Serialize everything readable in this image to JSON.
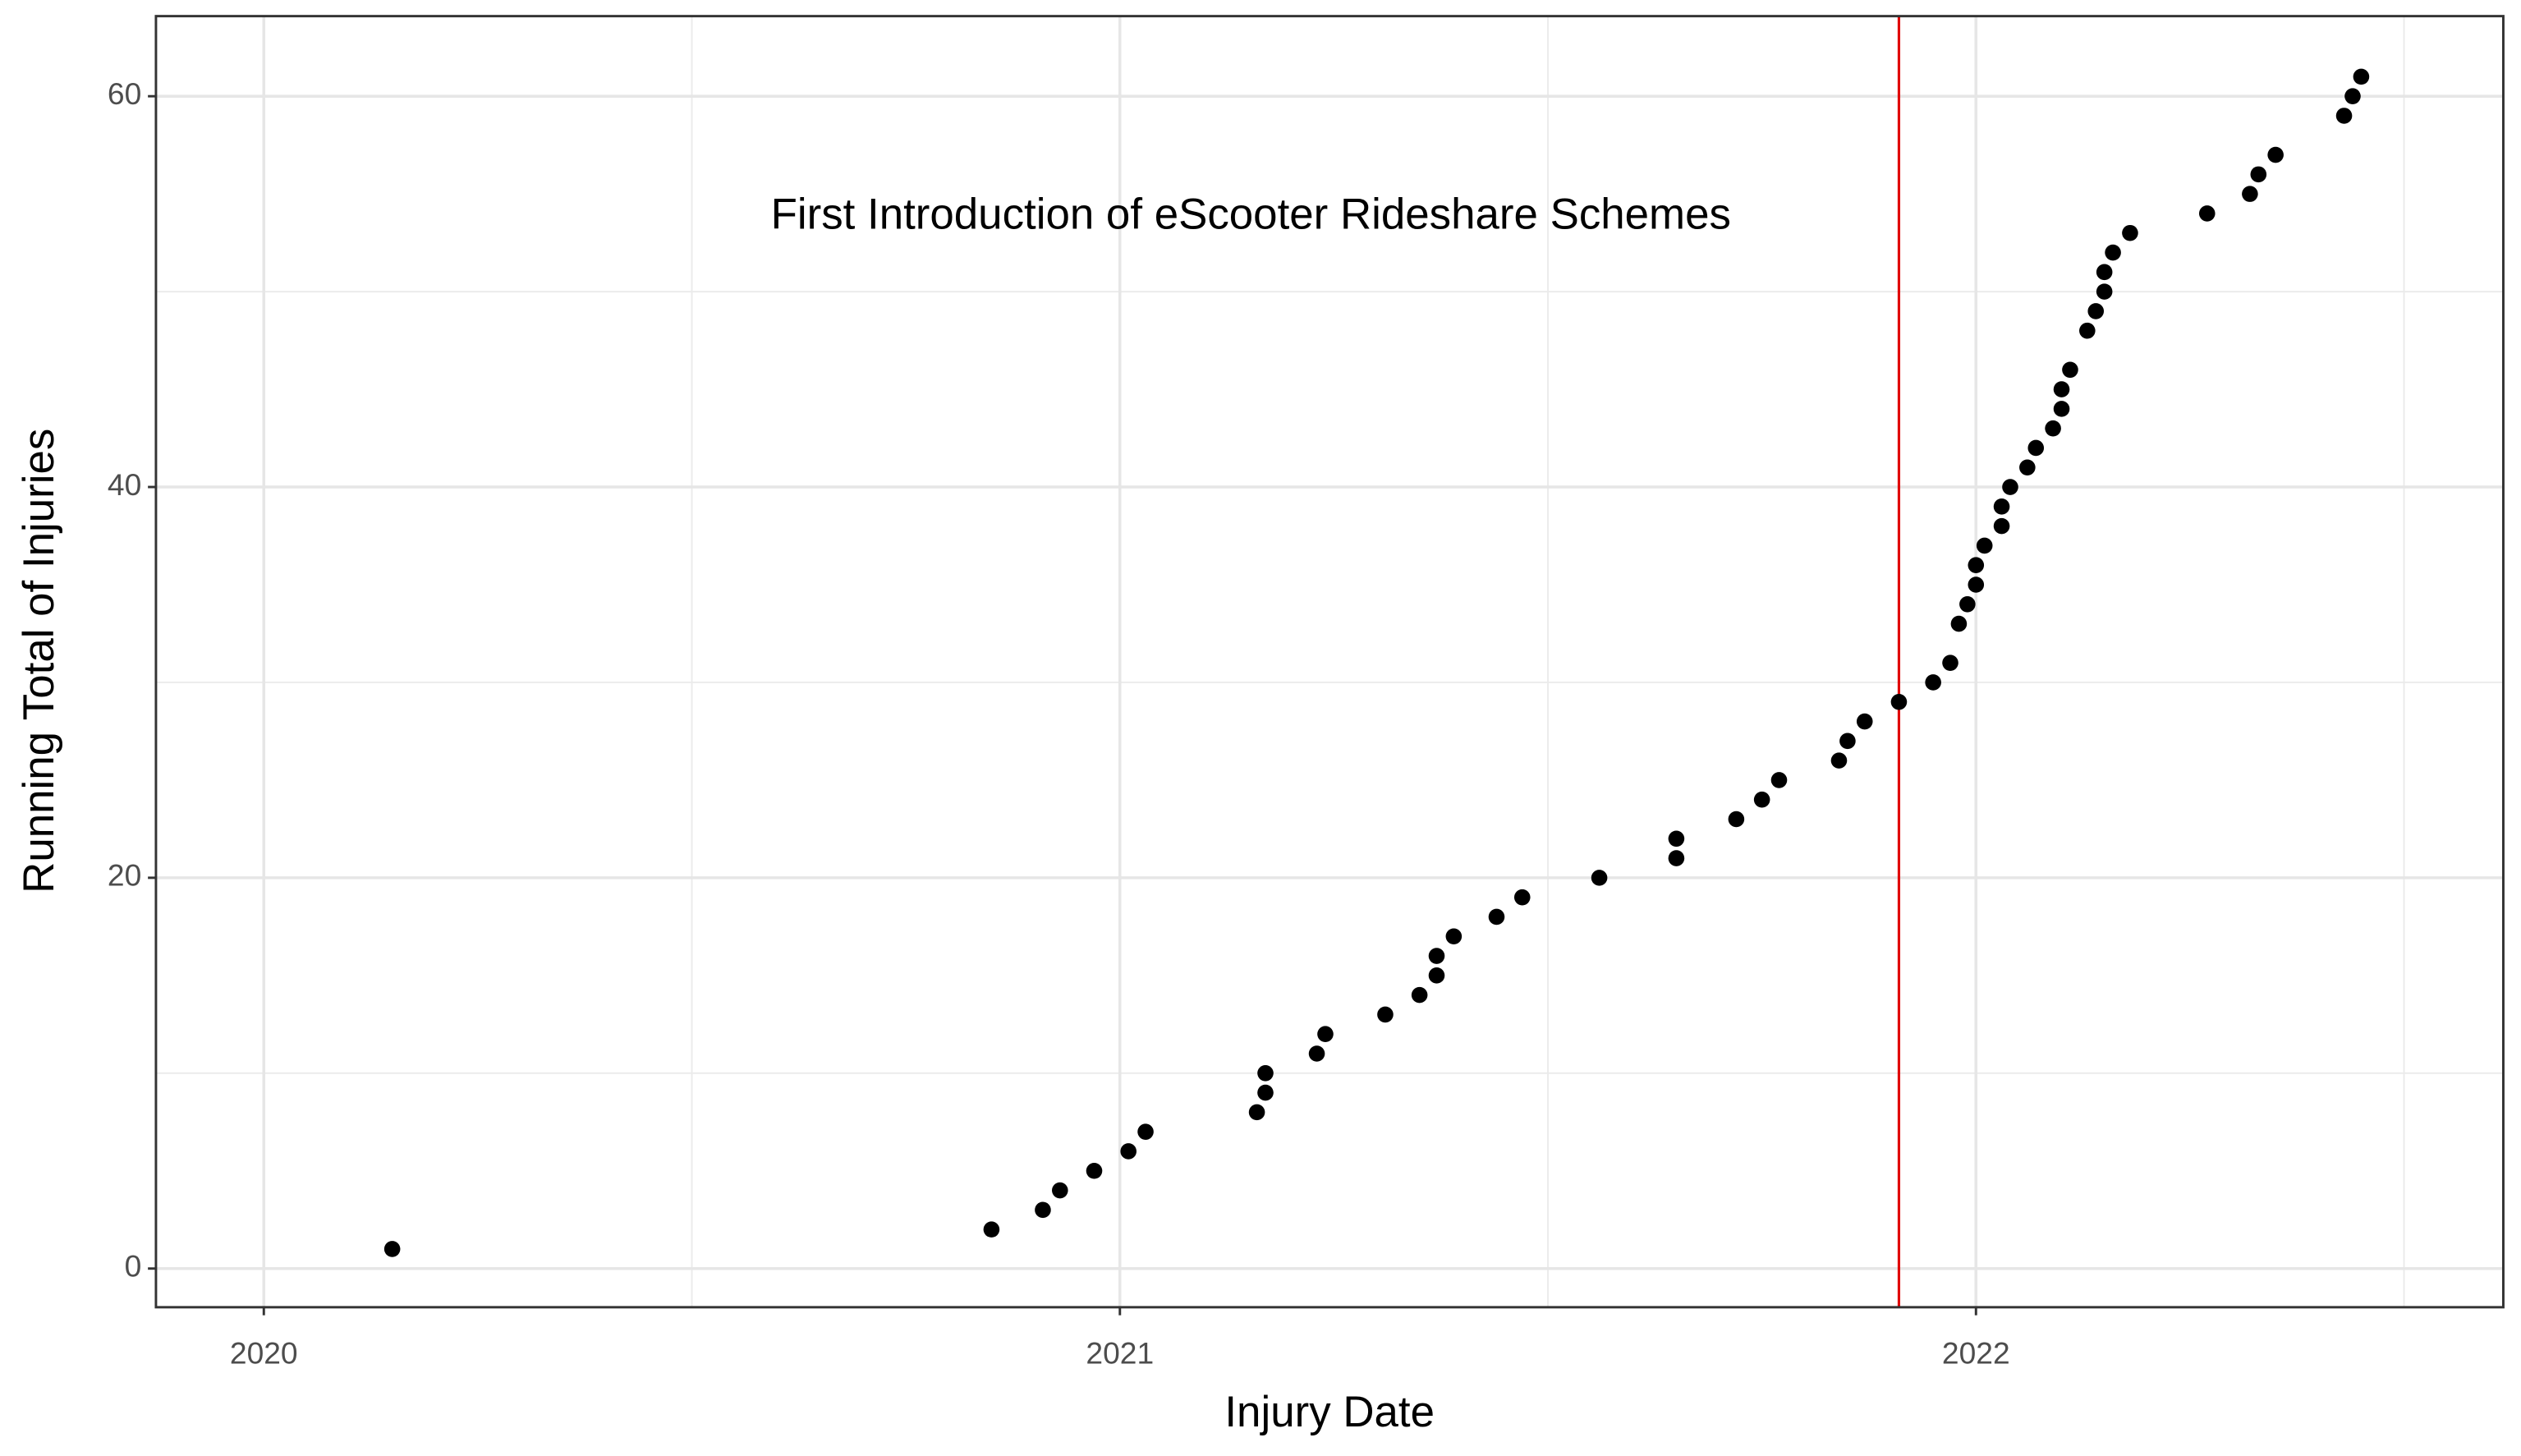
{
  "chart_data": {
    "type": "scatter",
    "x_label": "Injury Date",
    "y_label": "Running Total of Injuries",
    "annotation": "First Introduction of eScooter Rideshare Schemes",
    "vline": 2021.91,
    "vline_color": "#e00000",
    "color": "#000000",
    "grid": true,
    "xlim": [
      2019.874,
      2022.616
    ],
    "xticks": [
      2020,
      2021,
      2022
    ],
    "ylim": [
      -1.98,
      64.1
    ],
    "yticks": [
      0,
      20,
      40,
      60
    ],
    "x": [
      2020.15,
      2020.85,
      2020.91,
      2020.93,
      2020.97,
      2021.01,
      2021.03,
      2021.16,
      2021.17,
      2021.17,
      2021.23,
      2021.24,
      2021.31,
      2021.35,
      2021.37,
      2021.37,
      2021.39,
      2021.44,
      2021.47,
      2021.56,
      2021.65,
      2021.65,
      2021.72,
      2021.75,
      2021.77,
      2021.84,
      2021.85,
      2021.87,
      2021.91,
      2021.95,
      2021.97,
      2021.98,
      2021.99,
      2022.0,
      2022.0,
      2022.01,
      2022.03,
      2022.03,
      2022.04,
      2022.06,
      2022.07,
      2022.09,
      2022.1,
      2022.1,
      2022.11,
      2022.13,
      2022.14,
      2022.15,
      2022.15,
      2022.16,
      2022.18,
      2022.27,
      2022.32,
      2022.33,
      2022.35,
      2022.43,
      2022.44,
      2022.45
    ],
    "values": [
      1,
      2,
      3,
      4,
      5,
      6,
      7,
      8,
      9,
      10,
      11,
      12,
      13,
      14,
      15,
      16,
      17,
      18,
      19,
      20,
      21,
      22,
      23,
      24,
      25,
      26,
      27,
      28,
      29,
      30,
      31,
      33,
      34,
      35,
      36,
      37,
      38,
      39,
      40,
      41,
      42,
      43,
      44,
      45,
      46,
      48,
      49,
      50,
      51,
      52,
      53,
      54,
      55,
      56,
      57,
      59,
      60,
      61
    ]
  }
}
